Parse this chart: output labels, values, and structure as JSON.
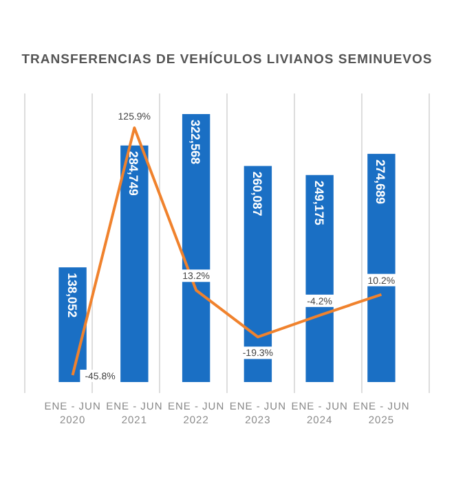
{
  "chart_data": {
    "type": "bar",
    "title": "TRANSFERENCIAS DE VEHÍCULOS LIVIANOS SEMINUEVOS",
    "categories": [
      "ENE - JUN 2020",
      "ENE - JUN 2021",
      "ENE - JUN 2022",
      "ENE - JUN 2023",
      "ENE - JUN 2024",
      "ENE - JUN 2025"
    ],
    "grid": "x",
    "series": [
      {
        "color": "#1a6fc4",
        "values": [
          138052,
          284749,
          322568,
          260087,
          249175,
          274689
        ],
        "value_labels": [
          "138,052",
          "284,749",
          "322,568",
          "260,087",
          "249,175",
          "274,689"
        ]
      },
      {
        "type": "line",
        "axis": "y2",
        "color": "#f0822d",
        "values": [
          -45.8,
          125.9,
          13.2,
          -19.3,
          -4.2,
          10.2
        ],
        "value_labels": [
          "-45.8%",
          "125.9%",
          "13.2%",
          "-19.3%",
          "-4.2%",
          "10.2%"
        ]
      }
    ]
  }
}
